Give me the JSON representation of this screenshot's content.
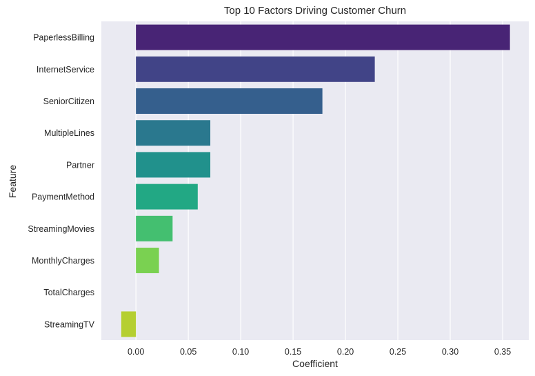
{
  "chart_data": {
    "type": "bar",
    "orientation": "horizontal",
    "title": "Top 10 Factors Driving Customer Churn",
    "xlabel": "Coefficient",
    "ylabel": "Feature",
    "categories": [
      "PaperlessBilling",
      "InternetService",
      "SeniorCitizen",
      "MultipleLines",
      "Partner",
      "PaymentMethod",
      "StreamingMovies",
      "MonthlyCharges",
      "TotalCharges",
      "StreamingTV"
    ],
    "values": [
      0.357,
      0.228,
      0.178,
      0.071,
      0.071,
      0.059,
      0.035,
      0.022,
      0.0,
      -0.014
    ],
    "colors": [
      "#482475",
      "#414487",
      "#355F8D",
      "#2A788E",
      "#21918C",
      "#22A884",
      "#44BF70",
      "#7AD151",
      "#BDDF26",
      "#B5CF31"
    ],
    "xlim": [
      -0.033,
      0.375
    ],
    "xticks": [
      0.0,
      0.05,
      0.1,
      0.15,
      0.2,
      0.25,
      0.3,
      0.35
    ],
    "xtick_labels": [
      "0.00",
      "0.05",
      "0.10",
      "0.15",
      "0.20",
      "0.25",
      "0.30",
      "0.35"
    ],
    "grid": true,
    "background": "#EAEAF2"
  }
}
